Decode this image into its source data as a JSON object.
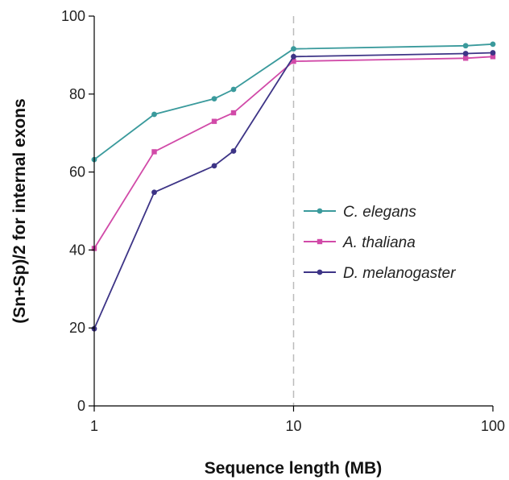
{
  "chart_data": {
    "type": "line",
    "xlabel": "Sequence length (MB)",
    "ylabel": "(Sn+Sp)/2 for internal exons",
    "x_scale": "log",
    "xlim": [
      1,
      100
    ],
    "ylim": [
      0,
      100
    ],
    "x_ticks": [
      "1",
      "10",
      "100"
    ],
    "y_ticks": [
      "0",
      "20",
      "40",
      "60",
      "80",
      "100"
    ],
    "grid": false,
    "reference_line_x": 10,
    "legend_position": "center-right",
    "series": [
      {
        "name": "C. elegans",
        "color": "#3a9a9c",
        "marker": "circle",
        "x": [
          1,
          2,
          4,
          5,
          10,
          73,
          100
        ],
        "y": [
          63.2,
          74.8,
          78.8,
          81.2,
          91.6,
          92.4,
          92.8
        ]
      },
      {
        "name": "A. thaliana",
        "color": "#d14aa8",
        "marker": "square",
        "x": [
          1,
          2,
          4,
          5,
          10,
          73,
          100
        ],
        "y": [
          40.4,
          65.2,
          73.0,
          75.2,
          88.4,
          89.2,
          89.6
        ]
      },
      {
        "name": "D. melanogaster",
        "color": "#3d3486",
        "marker": "circle",
        "x": [
          1,
          2,
          4,
          5,
          10,
          73,
          100
        ],
        "y": [
          19.8,
          54.8,
          61.6,
          65.4,
          89.6,
          90.4,
          90.6
        ]
      }
    ]
  }
}
